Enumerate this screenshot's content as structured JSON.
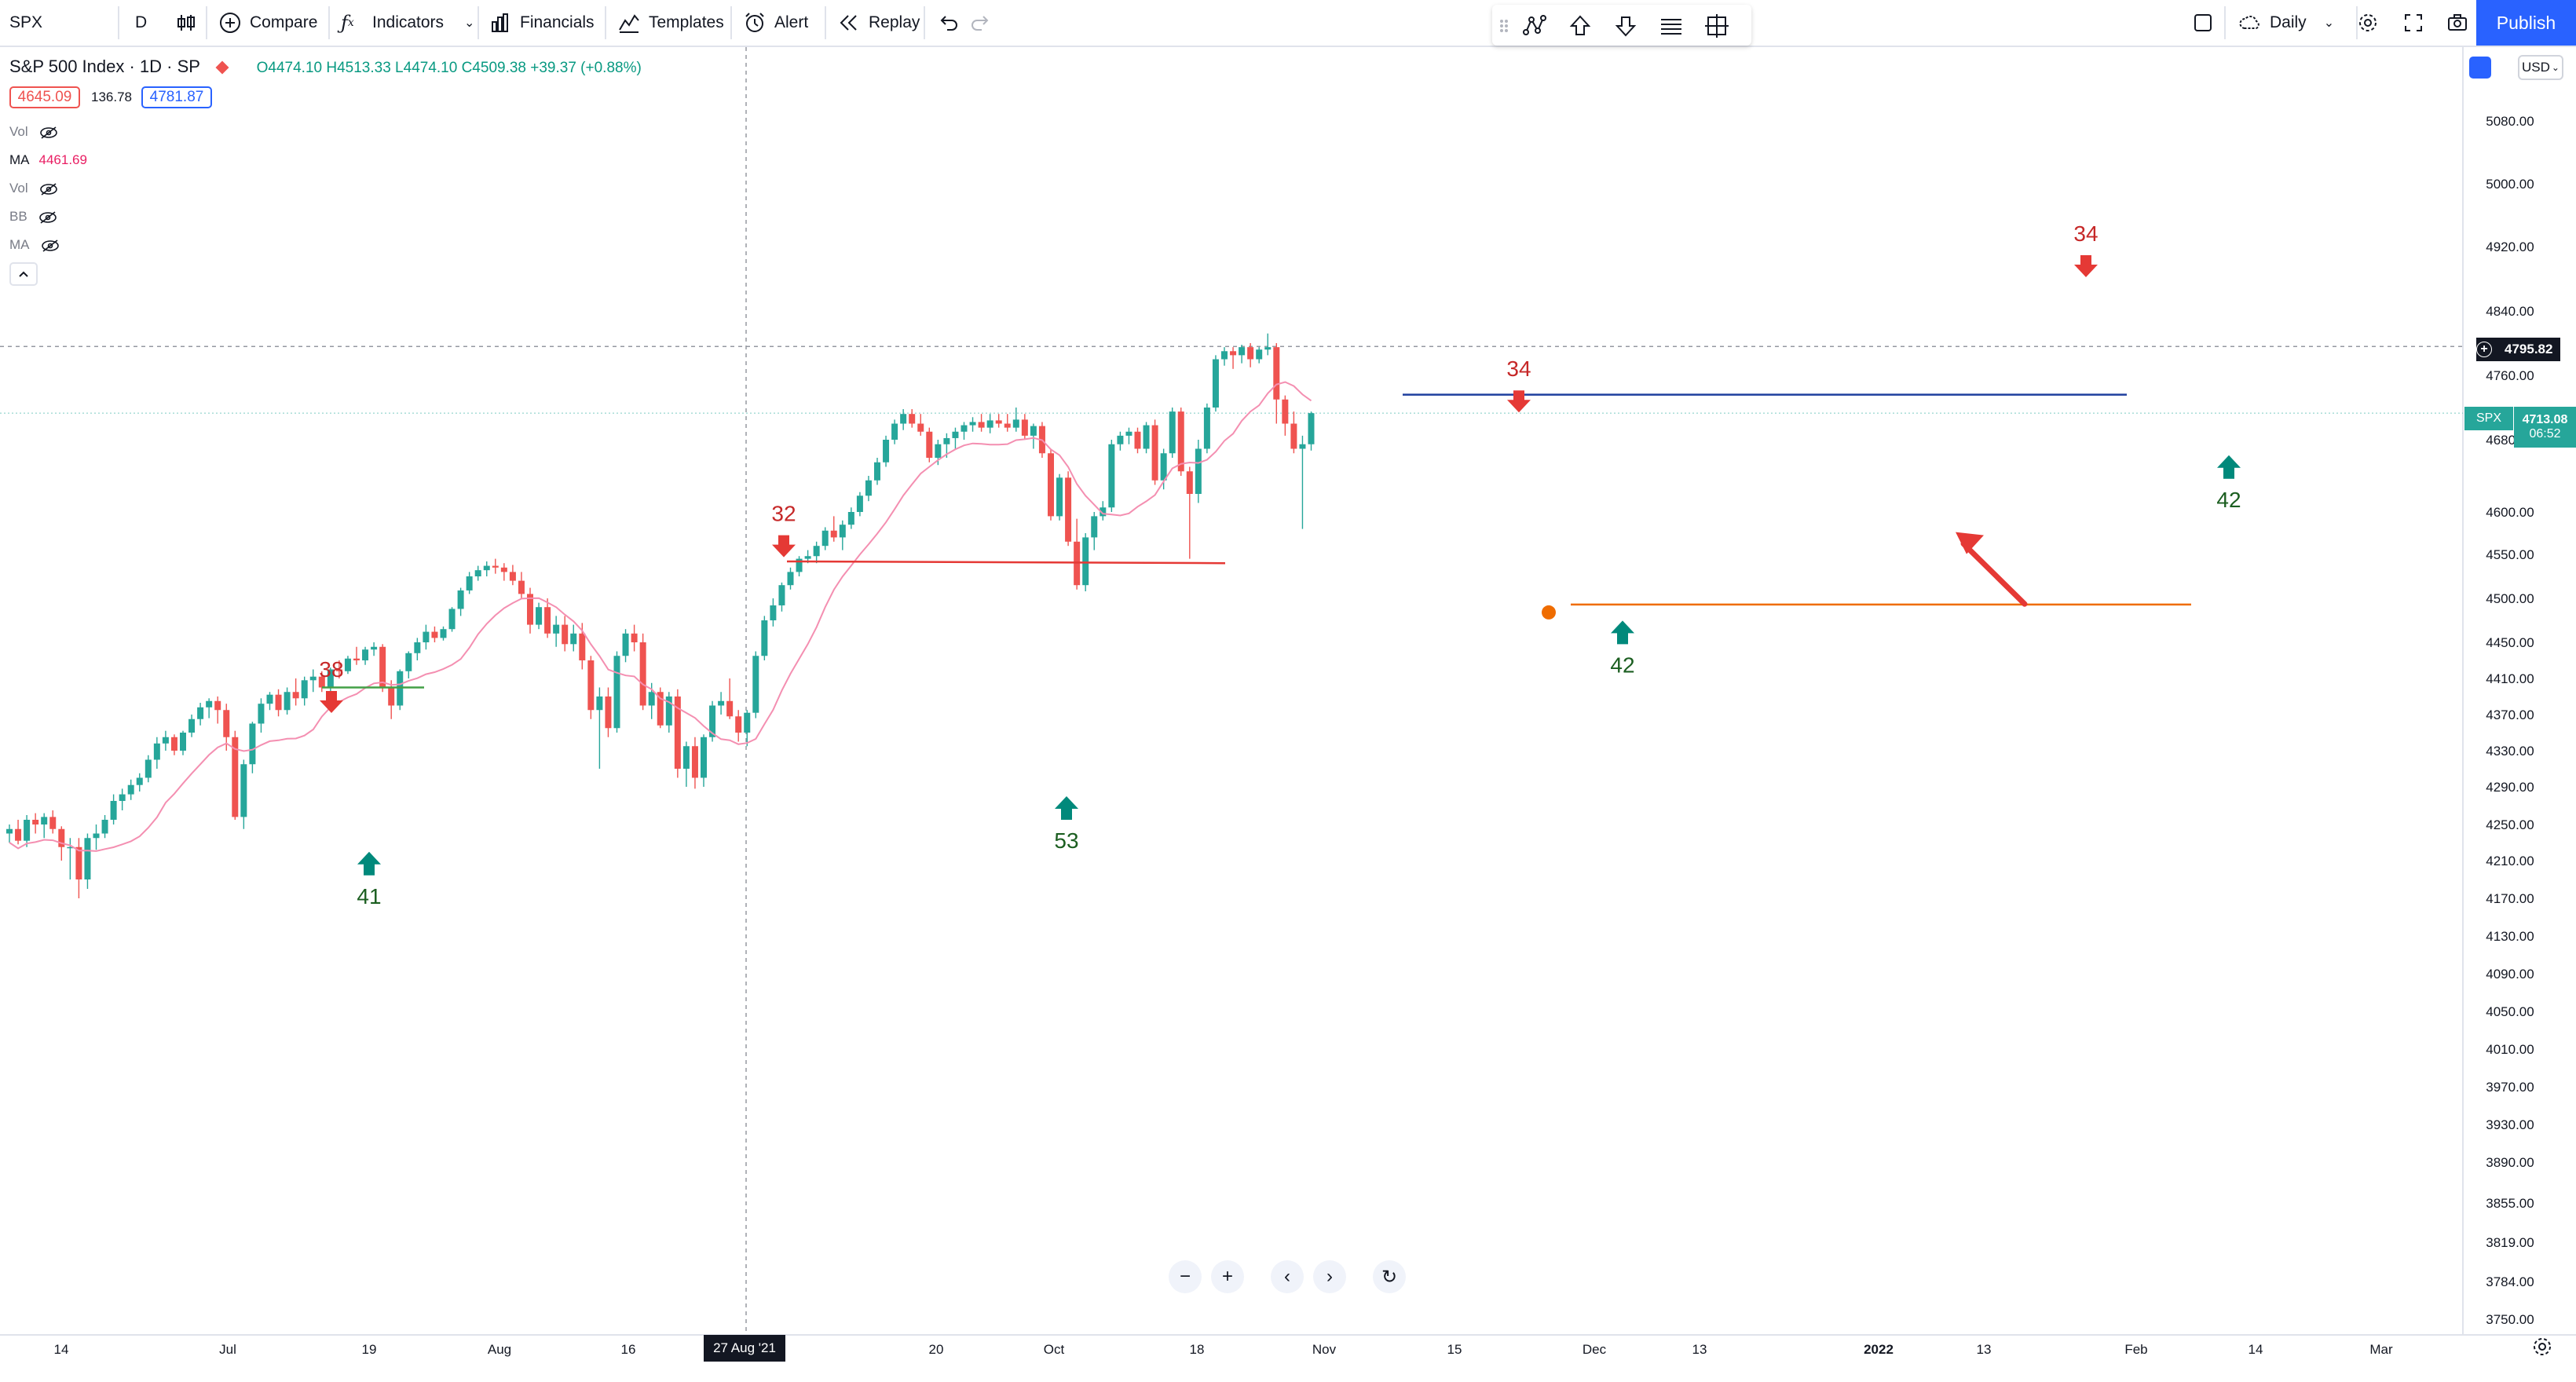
{
  "toolbar": {
    "symbol": "SPX",
    "interval": "D",
    "compare": "Compare",
    "indicators": "Indicators",
    "financials": "Financials",
    "templates": "Templates",
    "alert": "Alert",
    "replay": "Replay",
    "timeframe": "Daily",
    "publish": "Publish"
  },
  "legend": {
    "title": "S&P 500 Index · 1D · SP",
    "ohlc": "O4474.10 H4513.33 L4474.10 C4509.38 +39.37 (+0.88%)",
    "bid": "4645.09",
    "spread": "136.78",
    "ask": "4781.87",
    "indicators": [
      {
        "name": "Vol",
        "value": ""
      },
      {
        "name": "MA",
        "value": "4461.69"
      },
      {
        "name": "Vol",
        "value": ""
      },
      {
        "name": "BB",
        "value": ""
      },
      {
        "name": "MA",
        "value": ""
      }
    ]
  },
  "price_axis": {
    "currency": "USD",
    "labels": [
      "5080.00",
      "5000.00",
      "4920.00",
      "4840.00",
      "4760.00",
      "4680.00",
      "4600.00",
      "4550.00",
      "4500.00",
      "4450.00",
      "4410.00",
      "4370.00",
      "4330.00",
      "4290.00",
      "4250.00",
      "4210.00",
      "4170.00",
      "4130.00",
      "4090.00",
      "4050.00",
      "4010.00",
      "3970.00",
      "3930.00",
      "3890.00",
      "3855.00",
      "3819.00",
      "3784.00",
      "3750.00"
    ],
    "crosshair_price": "4795.82",
    "last_symbol": "SPX",
    "last_price": "4713.08",
    "countdown": "06:52"
  },
  "time_axis": {
    "labels": [
      "14",
      "Jul",
      "19",
      "Aug",
      "16",
      "20",
      "Oct",
      "18",
      "Nov",
      "15",
      "Dec",
      "13",
      "2022",
      "13",
      "Feb",
      "14",
      "Mar"
    ],
    "crosshair_date": "27 Aug '21"
  },
  "annotations": [
    {
      "text": "38",
      "kind": "sell"
    },
    {
      "text": "41",
      "kind": "buy"
    },
    {
      "text": "32",
      "kind": "sell"
    },
    {
      "text": "53",
      "kind": "buy"
    },
    {
      "text": "34",
      "kind": "sell"
    },
    {
      "text": "42",
      "kind": "buy"
    },
    {
      "text": "34",
      "kind": "sell"
    },
    {
      "text": "42",
      "kind": "buy"
    }
  ],
  "colors": {
    "up": "#26a69a",
    "down": "#ef5350",
    "ma": "#f48fb1",
    "accent": "#2962ff",
    "sell_label": "#c62828",
    "buy_label": "#1b5e20"
  },
  "icons": [
    "plus-circle-icon",
    "fx-icon",
    "bar-chart-icon",
    "templates-icon",
    "alarm-icon",
    "replay-icon",
    "undo-icon",
    "redo-icon",
    "settings-icon",
    "fullscreen-icon",
    "camera-icon",
    "zoom-out-icon",
    "zoom-in-icon",
    "scroll-left-icon",
    "scroll-right-icon",
    "reset-icon"
  ]
}
